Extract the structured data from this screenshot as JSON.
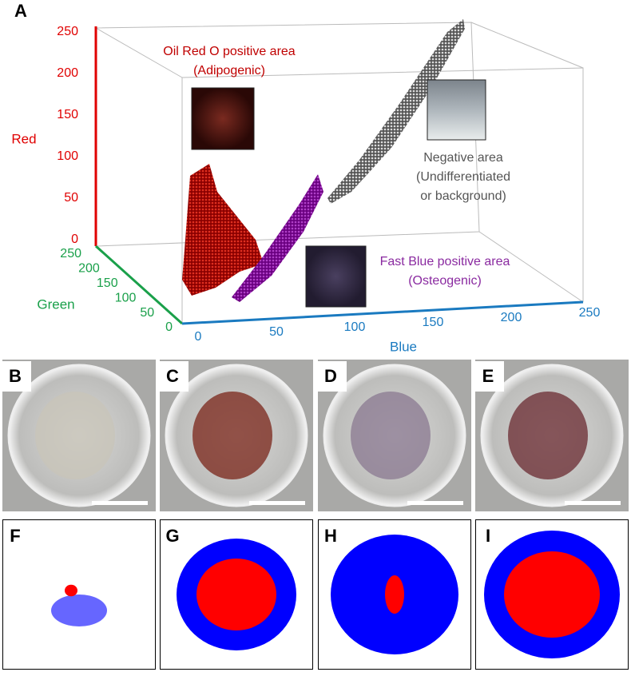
{
  "panel_a": {
    "label": "A",
    "axes": {
      "red": {
        "title": "Red",
        "ticks": [
          0,
          50,
          100,
          150,
          200,
          250
        ]
      },
      "green": {
        "title": "Green",
        "ticks": [
          0,
          50,
          100,
          150,
          200,
          250
        ]
      },
      "blue": {
        "title": "Blue",
        "ticks": [
          0,
          50,
          100,
          150,
          200,
          250
        ]
      }
    },
    "annotations": {
      "adipogenic": [
        "Oil Red O positive area",
        "(Adipogenic)"
      ],
      "negative": [
        "Negative area",
        "(Undifferentiated",
        "or background)"
      ],
      "osteogenic": [
        "Fast Blue positive area",
        "(Osteogenic)"
      ]
    }
  },
  "photos": [
    {
      "label": "B"
    },
    {
      "label": "C"
    },
    {
      "label": "D"
    },
    {
      "label": "E"
    }
  ],
  "maps": [
    {
      "label": "F"
    },
    {
      "label": "G"
    },
    {
      "label": "H"
    },
    {
      "label": "I"
    }
  ]
}
